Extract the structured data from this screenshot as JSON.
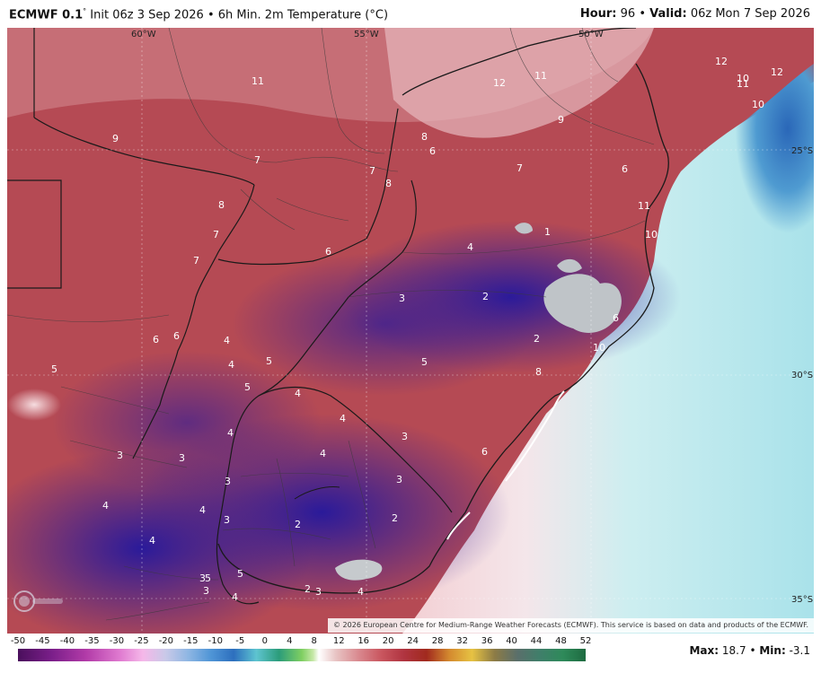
{
  "header": {
    "model": "ECMWF 0.1",
    "degree_mark": "°",
    "init_text": "Init 06z 3 Sep 2026",
    "separator": "•",
    "product": "6h Min. 2m Temperature (°C)",
    "hour_label": "Hour:",
    "hour_value": "96",
    "valid_label": "Valid:",
    "valid_value": "06z Mon 7 Sep 2026"
  },
  "map": {
    "lon_labels": [
      "60°W",
      "55°W",
      "50°W"
    ],
    "lat_labels": [
      "25°S",
      "30°S",
      "35°S"
    ],
    "value_labels": [
      "12",
      "11",
      "12",
      "10",
      "12",
      "10",
      "11",
      "9",
      "11",
      "9",
      "8",
      "6",
      "7",
      "8",
      "7",
      "6",
      "8",
      "7",
      "11",
      "10",
      "7",
      "7",
      "6",
      "1",
      "4",
      "3",
      "2",
      "6",
      "2",
      "6",
      "4",
      "6",
      "5",
      "4",
      "5",
      "5",
      "10",
      "5",
      "8",
      "4",
      "4",
      "3",
      "4",
      "3",
      "3",
      "6",
      "4",
      "3",
      "3",
      "4",
      "3",
      "2",
      "2",
      "4",
      "4",
      "3",
      "5",
      "5",
      "3",
      "2",
      "3",
      "4",
      "4"
    ],
    "copyright": "© 2026 European Centre for Medium-Range Weather Forecasts (ECMWF). This service is based on data and products of the ECMWF."
  },
  "legend": {
    "ticks": [
      "-50",
      "-45",
      "-40",
      "-35",
      "-30",
      "-25",
      "-20",
      "-15",
      "-10",
      "-5",
      "0",
      "4",
      "8",
      "12",
      "16",
      "20",
      "24",
      "28",
      "32",
      "36",
      "40",
      "44",
      "48",
      "52"
    ]
  },
  "stats": {
    "max_label": "Max:",
    "max_value": "18.7",
    "min_label": "Min:",
    "min_value": "-3.1"
  },
  "colors": {
    "warm": "#b8404a",
    "mild": "#c9717a",
    "cool": "#3a1f8c",
    "coldest": "#bfc4c8",
    "ocean": "#2f7fc4",
    "ocean_light": "#d7f0f2"
  }
}
